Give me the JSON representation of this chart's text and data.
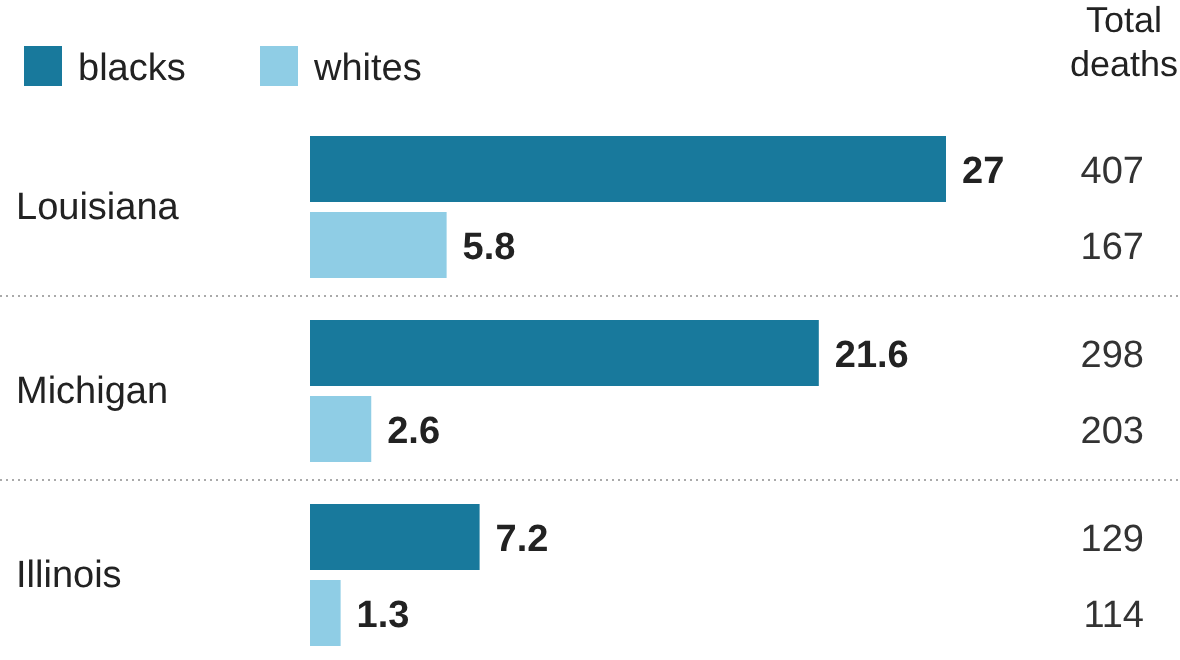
{
  "chart_data": {
    "type": "bar",
    "orientation": "horizontal",
    "categories": [
      "Louisiana",
      "Michigan",
      "Illinois"
    ],
    "series": [
      {
        "name": "blacks",
        "color": "#18799c",
        "values": [
          27,
          21.6,
          7.2
        ]
      },
      {
        "name": "whites",
        "color": "#8fcde5",
        "values": [
          5.8,
          2.6,
          1.3
        ]
      }
    ],
    "data_labels": true,
    "legend": "top left",
    "annotations": [
      "Total deaths",
      "407",
      "167",
      "298",
      "203",
      "129",
      "114"
    ]
  }
}
